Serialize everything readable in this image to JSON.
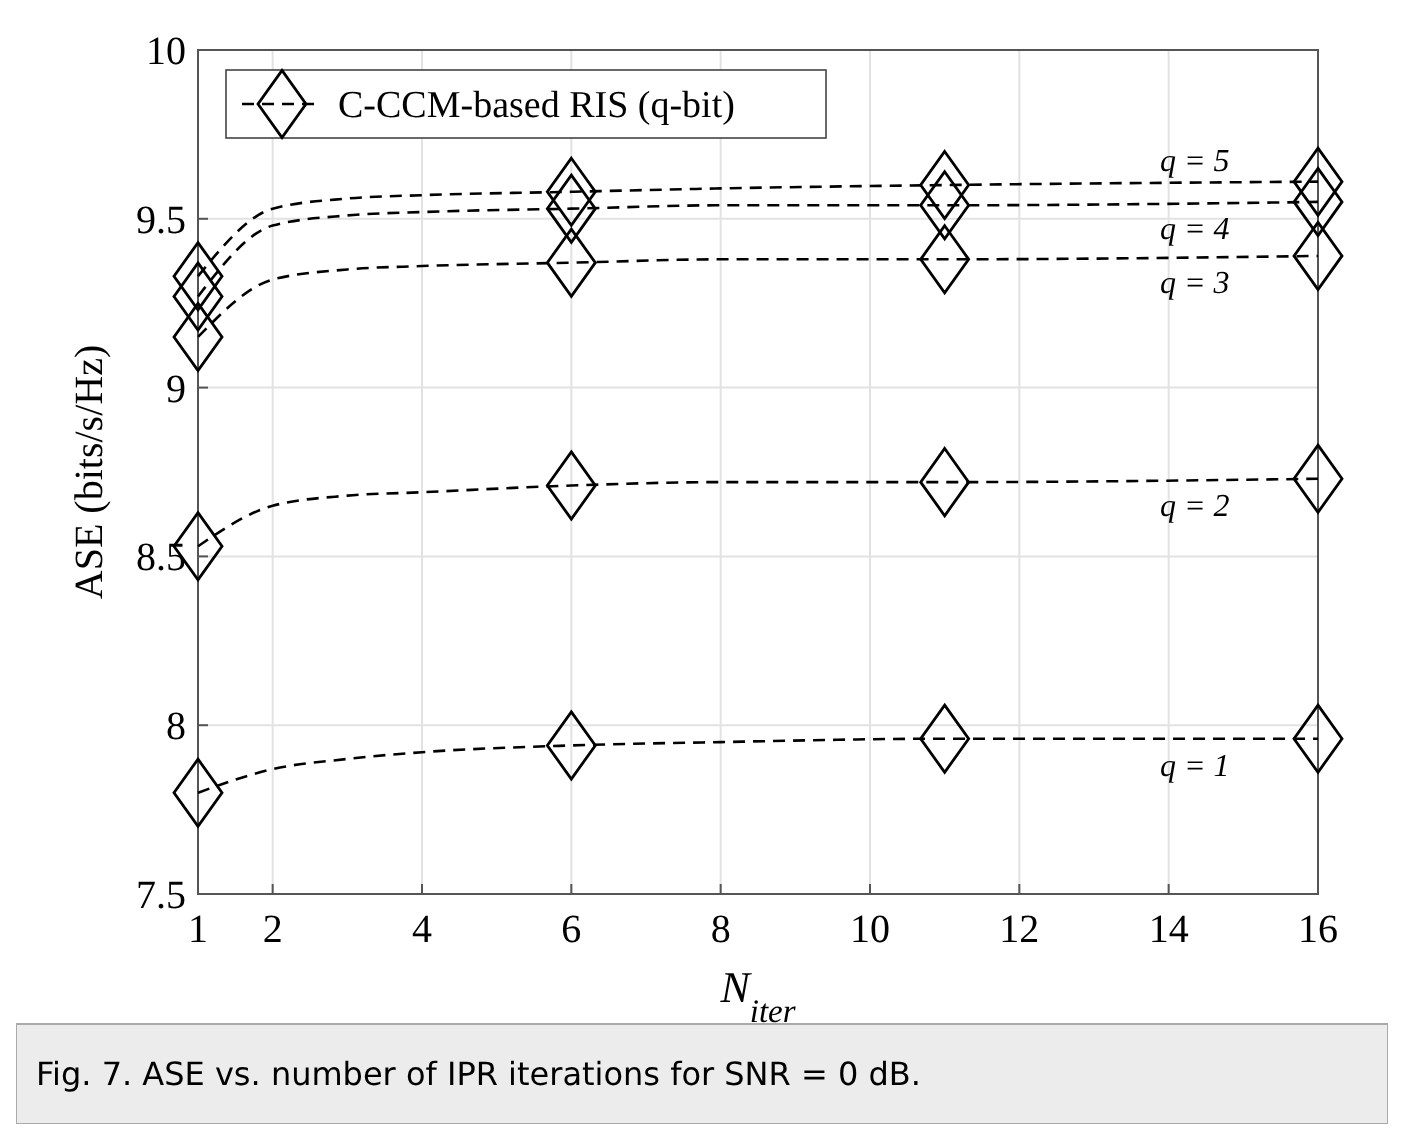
{
  "chart_data": {
    "type": "line",
    "xlabel": "N$_{iter}$",
    "ylabel": "ASE (bits/s/Hz)",
    "xlim": [
      1,
      16
    ],
    "xticks": [
      1,
      2,
      4,
      6,
      8,
      10,
      12,
      14,
      16
    ],
    "ylim": [
      7.5,
      10
    ],
    "yticks": [
      7.5,
      8,
      8.5,
      9,
      9.5,
      10
    ],
    "grid": true,
    "legend": "top left",
    "line_style": "dashed",
    "marker": "none",
    "series": [
      {
        "name": "q = 1",
        "color": "#000000",
        "x": [
          1,
          2,
          3,
          4,
          6,
          8,
          11,
          16
        ],
        "values": [
          7.8,
          7.87,
          7.9,
          7.92,
          7.94,
          7.95,
          7.96,
          7.96
        ]
      },
      {
        "name": "q = 2",
        "color": "#000000",
        "x": [
          1,
          2,
          3,
          4,
          6,
          8,
          11,
          16
        ],
        "values": [
          8.53,
          8.65,
          8.68,
          8.69,
          8.71,
          8.72,
          8.72,
          8.73
        ]
      },
      {
        "name": "q = 3",
        "color": "#000000",
        "x": [
          1,
          2,
          3,
          4,
          6,
          8,
          11,
          16
        ],
        "values": [
          9.15,
          9.32,
          9.35,
          9.36,
          9.37,
          9.38,
          9.38,
          9.39
        ]
      },
      {
        "name": "q = 4",
        "color": "#000000",
        "x": [
          1,
          2,
          3,
          4,
          6,
          8,
          11,
          16
        ],
        "values": [
          9.27,
          9.48,
          9.51,
          9.52,
          9.53,
          9.54,
          9.54,
          9.55
        ]
      },
      {
        "name": "q = 5",
        "color": "#000000",
        "x": [
          1,
          2,
          3,
          4,
          6,
          8,
          11,
          16
        ],
        "values": [
          9.33,
          9.53,
          9.56,
          9.57,
          9.58,
          9.59,
          9.6,
          9.61
        ]
      },
      {
        "type": "scatter",
        "name": "C-CCM-based RIS (q-bit)",
        "marker": "diamond",
        "color": "#000000",
        "x": [
          1,
          6,
          11,
          16
        ],
        "values": [
          9.33,
          9.58,
          9.6,
          9.61
        ]
      },
      {
        "type": "scatter",
        "marker": "diamond",
        "color": "#000000",
        "x": [
          1,
          6,
          11,
          16
        ],
        "values": [
          9.27,
          9.53,
          9.54,
          9.55
        ]
      },
      {
        "type": "scatter",
        "marker": "diamond",
        "color": "#000000",
        "x": [
          1,
          6,
          11,
          16
        ],
        "values": [
          9.15,
          9.37,
          9.38,
          9.39
        ]
      },
      {
        "type": "scatter",
        "marker": "diamond",
        "color": "#000000",
        "x": [
          1,
          6,
          11,
          16
        ],
        "values": [
          8.53,
          8.71,
          8.72,
          8.73
        ]
      },
      {
        "type": "scatter",
        "marker": "diamond",
        "color": "#000000",
        "x": [
          1,
          6,
          11,
          16
        ],
        "values": [
          7.8,
          7.94,
          7.96,
          7.96
        ]
      }
    ],
    "annotations": [
      "Fig. 7. ASE vs. number of IPR iterations for SNR = 0 dB."
    ]
  }
}
